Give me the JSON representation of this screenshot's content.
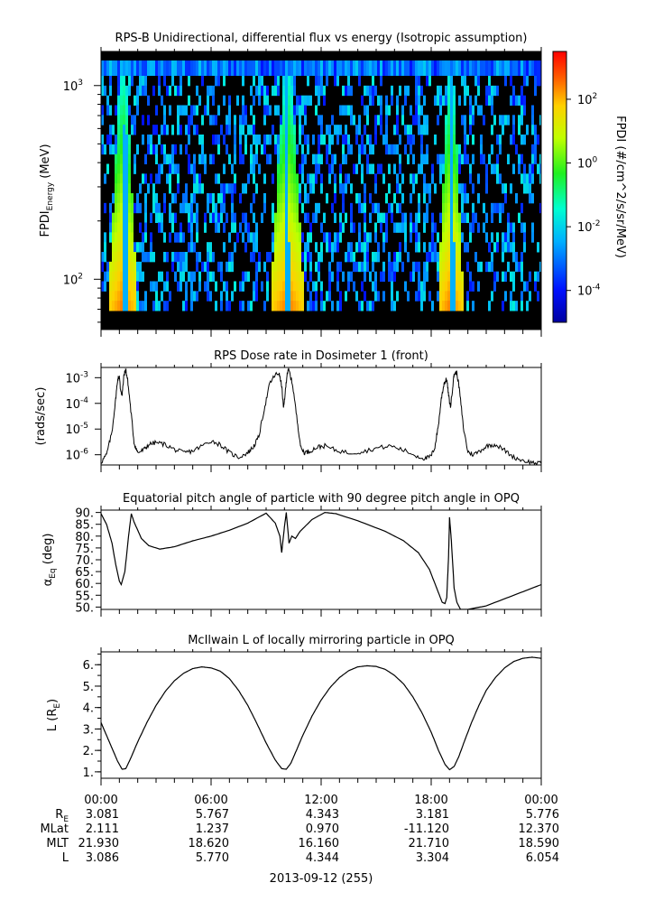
{
  "panels": [
    {
      "id": "spectrogram",
      "chart_data": {
        "type": "heatmap",
        "title": "RPS-B  Unidirectional, differential flux vs energy (Isotropic assumption)",
        "ylabel_main": "FPDI",
        "ylabel_sub": "Energy",
        "ylabel_unit": " (MeV)",
        "yscale": "log",
        "ylim": [
          55,
          1500
        ],
        "yticks": [
          {
            "value": 100,
            "base": "10",
            "exp": "2"
          },
          {
            "value": 1000,
            "base": "10",
            "exp": "3"
          }
        ],
        "xlim_hours": [
          0,
          24
        ],
        "bright_bands_hours": [
          {
            "start": 0.45,
            "end": 1.8,
            "gap": 1.25
          },
          {
            "start": 9.3,
            "end": 10.9,
            "gap": 10.05
          },
          {
            "start": 18.4,
            "end": 19.6,
            "gap": 19.05
          }
        ],
        "colorbar": {
          "label": "FPDI (#/cm^2/s/sr/MeV)",
          "scale": "log",
          "range_exp": [
            -5,
            3.5
          ],
          "ticks": [
            {
              "base": "10",
              "exp": "2",
              "value_exp": 2
            },
            {
              "base": "10",
              "exp": "0",
              "value_exp": 0
            },
            {
              "base": "10",
              "exp": "-2",
              "value_exp": -2
            },
            {
              "base": "10",
              "exp": "-4",
              "value_exp": -4
            }
          ]
        }
      }
    },
    {
      "id": "dose",
      "chart_data": {
        "type": "line",
        "title": "RPS  Dose rate in Dosimeter 1 (front)",
        "ylabel": "(rads/sec)",
        "yscale": "log",
        "ylim": [
          4e-07,
          0.0025
        ],
        "yticks": [
          {
            "value": 0.001,
            "base": "10",
            "exp": "-3"
          },
          {
            "value": 0.0001,
            "base": "10",
            "exp": "-4"
          },
          {
            "value": 1e-05,
            "base": "10",
            "exp": "-5"
          },
          {
            "value": 1e-06,
            "base": "10",
            "exp": "-6"
          }
        ],
        "x": [
          0,
          0.3,
          0.6,
          0.8,
          0.9,
          1.0,
          1.05,
          1.15,
          1.25,
          1.35,
          1.45,
          1.6,
          1.8,
          2.0,
          2.3,
          2.6,
          3.0,
          3.5,
          4.0,
          4.5,
          5.0,
          5.5,
          6.0,
          6.5,
          7.0,
          7.5,
          8.0,
          8.3,
          8.6,
          8.9,
          9.2,
          9.5,
          9.7,
          9.85,
          9.95,
          10.05,
          10.15,
          10.25,
          10.45,
          10.7,
          10.9,
          11.1,
          11.4,
          11.8,
          12.2,
          12.8,
          13.5,
          14.2,
          15.0,
          15.8,
          16.5,
          17.2,
          17.7,
          18.0,
          18.2,
          18.4,
          18.55,
          18.7,
          18.85,
          18.95,
          19.05,
          19.15,
          19.25,
          19.4,
          19.55,
          19.75,
          20.0,
          20.3,
          20.7,
          21.1,
          21.5,
          22.0,
          22.5,
          23.0,
          23.5,
          24.0
        ],
        "y": [
          5e-07,
          1e-06,
          8e-06,
          0.00015,
          0.0008,
          0.0012,
          0.0004,
          0.0002,
          0.0013,
          0.002,
          0.0008,
          8e-05,
          3e-06,
          1.2e-06,
          1.5e-06,
          2.5e-06,
          3e-06,
          2.5e-06,
          1.6e-06,
          1.2e-06,
          1.4e-06,
          2.2e-06,
          3.5e-06,
          2.5e-06,
          1.2e-06,
          8e-07,
          1.2e-06,
          2e-06,
          5e-06,
          6e-05,
          0.0006,
          0.0013,
          0.0015,
          0.0005,
          6e-05,
          0.0003,
          0.0016,
          0.0019,
          0.0005,
          2e-05,
          1.8e-06,
          1.2e-06,
          1.4e-06,
          2e-06,
          2.2e-06,
          1.5e-06,
          1.2e-06,
          1.3e-06,
          1.8e-06,
          2.2e-06,
          1.5e-06,
          9e-07,
          7e-07,
          9e-07,
          2e-06,
          1.5e-05,
          0.00015,
          0.0006,
          0.0009,
          0.0002,
          7e-05,
          0.0003,
          0.0014,
          0.0016,
          0.0003,
          1.2e-05,
          1.3e-06,
          1e-06,
          1.5e-06,
          2.3e-06,
          2.5e-06,
          1.5e-06,
          8e-07,
          6e-07,
          5e-07,
          4.5e-07
        ]
      }
    },
    {
      "id": "pitch",
      "chart_data": {
        "type": "line",
        "title": "Equatorial pitch angle of particle with 90 degree pitch angle in OPQ",
        "ylabel_main": "α",
        "ylabel_sub": "Eq",
        "ylabel_unit": " (deg)",
        "ylim": [
          49,
          91
        ],
        "yticks": [
          90,
          85,
          80,
          75,
          70,
          65,
          60,
          55,
          50
        ],
        "ytick_labels": [
          "90.",
          "85.",
          "80.",
          "75.",
          "70.",
          "65.",
          "60.",
          "55.",
          "50."
        ],
        "x": [
          0,
          0.3,
          0.6,
          0.8,
          1.0,
          1.1,
          1.3,
          1.5,
          1.65,
          1.8,
          2.2,
          2.6,
          3.2,
          4.0,
          5.0,
          6.0,
          7.0,
          8.0,
          9.0,
          9.5,
          9.75,
          9.85,
          10.0,
          10.1,
          10.25,
          10.4,
          10.6,
          10.85,
          11.5,
          12.2,
          12.8,
          14.0,
          15.5,
          16.5,
          17.3,
          17.9,
          18.3,
          18.6,
          18.75,
          18.85,
          18.95,
          19.0,
          19.1,
          19.25,
          19.4,
          19.6,
          20.0,
          21.0,
          22.0,
          23.0,
          24.0
        ],
        "y": [
          89.5,
          85,
          77,
          68,
          61,
          59.5,
          65,
          80,
          89.5,
          86,
          79,
          76,
          74.5,
          75.5,
          78,
          80,
          82.5,
          85.5,
          89.7,
          85.5,
          80,
          73,
          84,
          90,
          77,
          80,
          79,
          82,
          87,
          90,
          89.5,
          86.5,
          82,
          78,
          73,
          66,
          58,
          52,
          51.5,
          54,
          72,
          88,
          78,
          58,
          52,
          49,
          49,
          50.5,
          53.5,
          56.5,
          59.5
        ]
      }
    },
    {
      "id": "lshell",
      "chart_data": {
        "type": "line",
        "title": "McIlwain L of locally mirroring particle in OPQ",
        "ylabel_main": "L (R",
        "ylabel_sub": "E",
        "ylabel_unit": ")",
        "ylim": [
          0.7,
          6.6
        ],
        "yticks": [
          6,
          5,
          4,
          3,
          2,
          1
        ],
        "ytick_labels": [
          "6.",
          "5.",
          "4.",
          "3.",
          "2.",
          "1."
        ],
        "x": [
          0,
          0.3,
          0.6,
          0.9,
          1.15,
          1.35,
          1.6,
          2.0,
          2.5,
          3.0,
          3.5,
          4.0,
          4.5,
          5.0,
          5.5,
          6.0,
          6.5,
          7.0,
          7.5,
          8.0,
          8.5,
          9.0,
          9.5,
          9.85,
          10.1,
          10.35,
          10.6,
          11.0,
          11.5,
          12.0,
          12.5,
          13.0,
          13.5,
          14.0,
          14.5,
          15.0,
          15.5,
          16.0,
          16.5,
          17.0,
          17.5,
          18.0,
          18.4,
          18.75,
          19.0,
          19.25,
          19.5,
          19.8,
          20.2,
          20.6,
          21.0,
          21.5,
          22.0,
          22.5,
          23.0,
          23.5,
          24.0
        ],
        "y": [
          3.3,
          2.7,
          2.1,
          1.5,
          1.12,
          1.15,
          1.6,
          2.4,
          3.3,
          4.1,
          4.75,
          5.25,
          5.6,
          5.82,
          5.9,
          5.85,
          5.7,
          5.35,
          4.8,
          4.1,
          3.25,
          2.35,
          1.55,
          1.15,
          1.12,
          1.4,
          1.9,
          2.7,
          3.6,
          4.35,
          4.95,
          5.4,
          5.72,
          5.9,
          5.95,
          5.92,
          5.78,
          5.5,
          5.1,
          4.5,
          3.75,
          2.85,
          2.0,
          1.35,
          1.1,
          1.25,
          1.7,
          2.4,
          3.3,
          4.1,
          4.8,
          5.4,
          5.85,
          6.15,
          6.3,
          6.35,
          6.3
        ]
      }
    }
  ],
  "x_axis": {
    "xlim_hours": [
      0,
      24
    ],
    "tick_labels": [
      "00:00",
      "06:00",
      "12:00",
      "18:00",
      "00:00"
    ],
    "rows": [
      {
        "label_main": "R",
        "label_sub": "E",
        "values": [
          "3.081",
          "5.767",
          "4.343",
          "3.181",
          "5.776"
        ]
      },
      {
        "label_main": "MLat",
        "label_sub": "",
        "values": [
          "2.111",
          "1.237",
          "0.970",
          "-11.120",
          "12.370"
        ]
      },
      {
        "label_main": "MLT",
        "label_sub": "",
        "values": [
          "21.930",
          "18.620",
          "16.160",
          "21.710",
          "18.590"
        ]
      },
      {
        "label_main": "L",
        "label_sub": "",
        "values": [
          "3.086",
          "5.770",
          "4.344",
          "3.304",
          "6.054"
        ]
      }
    ],
    "date_label": "2013-09-12 (255)"
  }
}
